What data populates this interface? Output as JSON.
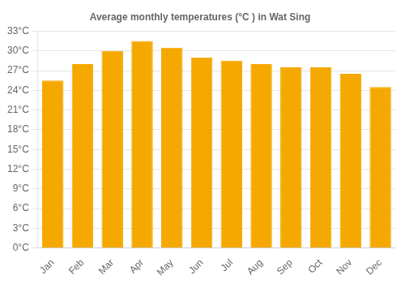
{
  "chart_data": {
    "type": "bar",
    "title": "Average monthly temperatures (°C ) in Wat Sing",
    "categories": [
      "Jan",
      "Feb",
      "Mar",
      "Apr",
      "May",
      "Jun",
      "Jul",
      "Aug",
      "Sep",
      "Oct",
      "Nov",
      "Dec"
    ],
    "values": [
      25.5,
      28.0,
      30.0,
      31.5,
      30.5,
      29.0,
      28.5,
      28.0,
      27.5,
      27.5,
      26.5,
      24.5
    ],
    "color": "#F5A800",
    "ylim": [
      0,
      33
    ],
    "yticks": [
      {
        "value": 0,
        "label": "0°C"
      },
      {
        "value": 3,
        "label": "3°C"
      },
      {
        "value": 6,
        "label": "6°C"
      },
      {
        "value": 9,
        "label": "9°C"
      },
      {
        "value": 12,
        "label": "12°C"
      },
      {
        "value": 15,
        "label": "15°C"
      },
      {
        "value": 18,
        "label": "18°C"
      },
      {
        "value": 21,
        "label": "21°C"
      },
      {
        "value": 24,
        "label": "24°C"
      },
      {
        "value": 27,
        "label": "27°C"
      },
      {
        "value": 30,
        "label": "30°C"
      },
      {
        "value": 33,
        "label": "33°C"
      }
    ],
    "grid": true
  }
}
